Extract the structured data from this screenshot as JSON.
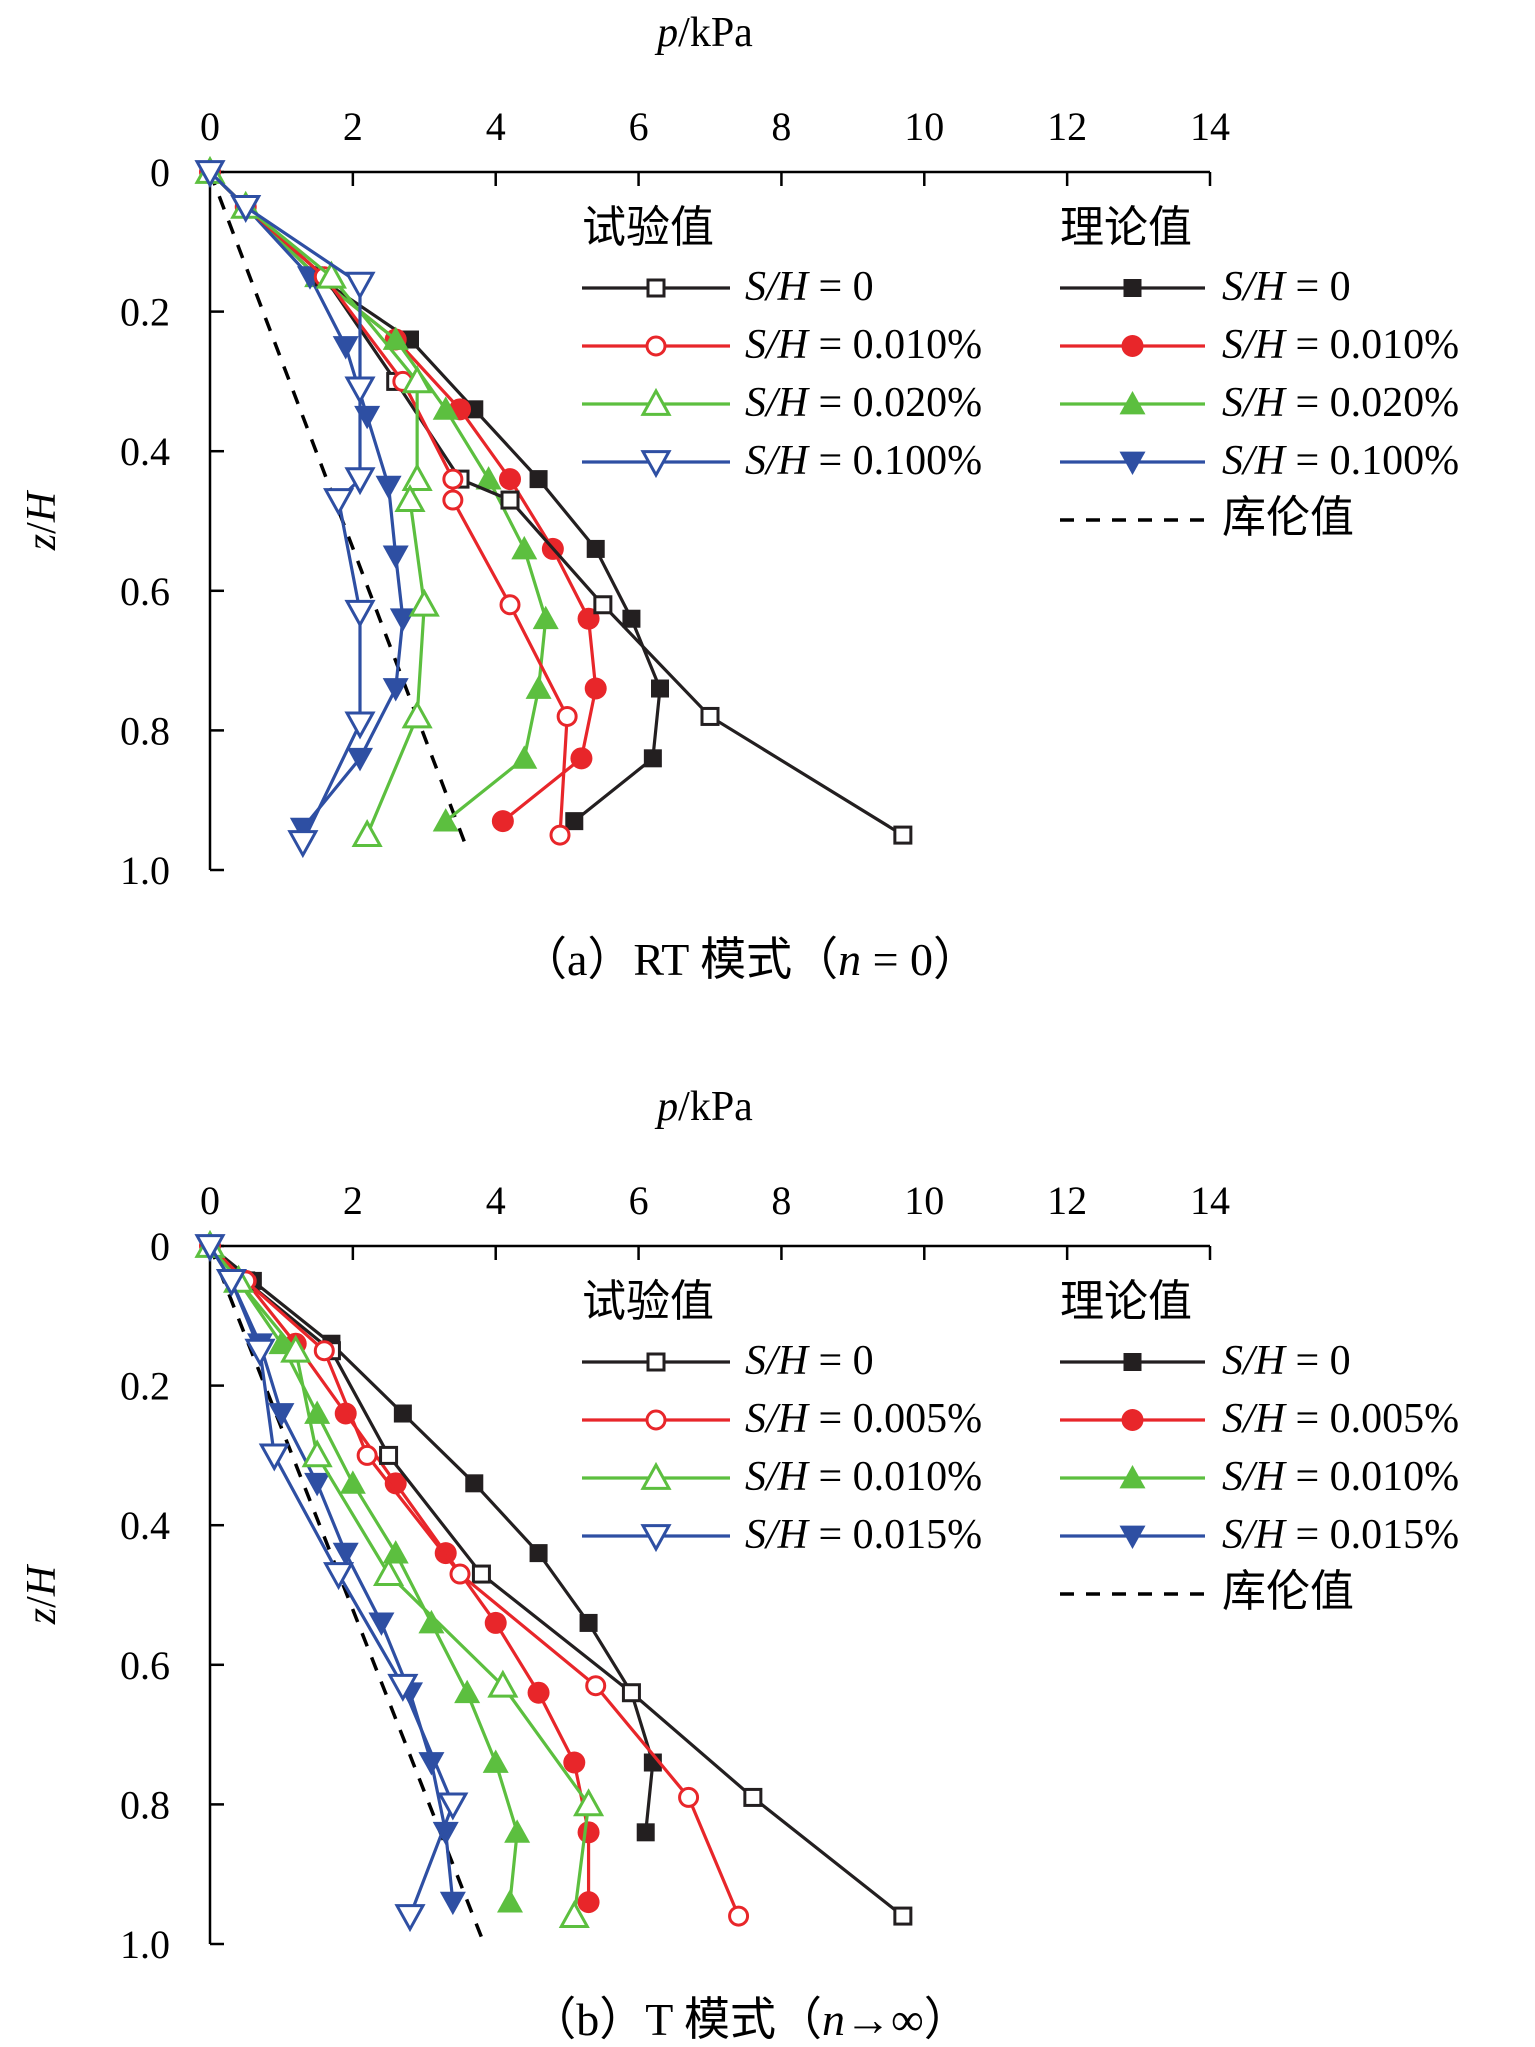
{
  "chart_data": [
    {
      "type": "line",
      "caption_lead": "（a）RT 模式（",
      "caption_var": "n",
      "caption_tail": " = 0）",
      "xlabel_var": "p",
      "xlabel_unit": "/kPa",
      "ylabel_var1": "z",
      "ylabel_sep": "/",
      "ylabel_var2": "H",
      "xlim": [
        0,
        14
      ],
      "ylim": [
        0,
        1.0
      ],
      "x_ticks": [
        "0",
        "2",
        "4",
        "6",
        "8",
        "10",
        "12",
        "14"
      ],
      "y_ticks": [
        "0",
        "0.2",
        "0.4",
        "0.6",
        "0.8",
        "1.0"
      ],
      "y_tick_values": [
        0,
        0.2,
        0.4,
        0.6,
        0.8,
        1.0
      ],
      "legend": {
        "test_header": "试验值",
        "theory_header": "理论值",
        "coulomb_label": "库伦值",
        "var_prefix": "S/H",
        "rows": [
          " = 0",
          " = 0.010%",
          " = 0.020%",
          " = 0.100%"
        ]
      },
      "colors": [
        "#231f20",
        "#e8262a",
        "#5cbf3f",
        "#2e4fa3"
      ],
      "test_series": [
        {
          "name": "S/H = 0",
          "x": [
            0,
            0.5,
            1.6,
            2.6,
            3.5,
            4.2,
            5.5,
            7.0,
            9.7
          ],
          "y": [
            0,
            0.05,
            0.15,
            0.3,
            0.44,
            0.47,
            0.62,
            0.78,
            0.95
          ]
        },
        {
          "name": "S/H = 0.010%",
          "x": [
            0,
            0.5,
            1.6,
            2.7,
            3.4,
            3.4,
            4.2,
            5.0,
            4.9
          ],
          "y": [
            0,
            0.05,
            0.15,
            0.3,
            0.44,
            0.47,
            0.62,
            0.78,
            0.95
          ]
        },
        {
          "name": "S/H = 0.020%",
          "x": [
            0,
            0.5,
            1.7,
            2.9,
            2.9,
            2.8,
            3.0,
            2.9,
            2.2
          ],
          "y": [
            0,
            0.05,
            0.15,
            0.3,
            0.44,
            0.47,
            0.62,
            0.78,
            0.95
          ]
        },
        {
          "name": "S/H = 0.100%",
          "x": [
            0,
            0.5,
            2.1,
            2.1,
            2.1,
            1.8,
            2.1,
            2.1,
            1.3
          ],
          "y": [
            0,
            0.05,
            0.16,
            0.31,
            0.44,
            0.47,
            0.63,
            0.79,
            0.96
          ]
        }
      ],
      "theory_series": [
        {
          "name": "S/H = 0",
          "x": [
            0,
            0.5,
            1.5,
            2.8,
            3.7,
            4.6,
            5.4,
            5.9,
            6.3,
            6.2,
            5.1
          ],
          "y": [
            0,
            0.05,
            0.15,
            0.24,
            0.34,
            0.44,
            0.54,
            0.64,
            0.74,
            0.84,
            0.93
          ]
        },
        {
          "name": "S/H = 0.010%",
          "x": [
            0,
            0.5,
            1.5,
            2.6,
            3.5,
            4.2,
            4.8,
            5.3,
            5.4,
            5.2,
            4.1
          ],
          "y": [
            0,
            0.05,
            0.15,
            0.24,
            0.34,
            0.44,
            0.54,
            0.64,
            0.74,
            0.84,
            0.93
          ]
        },
        {
          "name": "S/H = 0.020%",
          "x": [
            0,
            0.5,
            1.5,
            2.6,
            3.3,
            3.9,
            4.4,
            4.7,
            4.6,
            4.4,
            3.3
          ],
          "y": [
            0,
            0.05,
            0.15,
            0.24,
            0.34,
            0.44,
            0.54,
            0.64,
            0.74,
            0.84,
            0.93
          ]
        },
        {
          "name": "S/H = 0.100%",
          "x": [
            0,
            0.5,
            1.4,
            1.9,
            2.2,
            2.5,
            2.6,
            2.7,
            2.6,
            2.1,
            1.3
          ],
          "y": [
            0,
            0.05,
            0.15,
            0.25,
            0.35,
            0.45,
            0.55,
            0.64,
            0.74,
            0.84,
            0.94
          ]
        }
      ],
      "coulomb": {
        "x": [
          0,
          3.6
        ],
        "y": [
          0,
          0.97
        ]
      }
    },
    {
      "type": "line",
      "caption_lead": "（b）T 模式（",
      "caption_var": "n",
      "caption_tail": "→∞）",
      "xlabel_var": "p",
      "xlabel_unit": "/kPa",
      "ylabel_var1": "z",
      "ylabel_sep": "/",
      "ylabel_var2": "H",
      "xlim": [
        0,
        14
      ],
      "ylim": [
        0,
        1.0
      ],
      "x_ticks": [
        "0",
        "2",
        "4",
        "6",
        "8",
        "10",
        "12",
        "14"
      ],
      "y_ticks": [
        "0",
        "0.2",
        "0.4",
        "0.6",
        "0.8",
        "1.0"
      ],
      "y_tick_values": [
        0,
        0.2,
        0.4,
        0.6,
        0.8,
        1.0
      ],
      "legend": {
        "test_header": "试验值",
        "theory_header": "理论值",
        "coulomb_label": "库伦值",
        "var_prefix": "S/H",
        "rows": [
          " = 0",
          " = 0.005%",
          " = 0.010%",
          " = 0.015%"
        ]
      },
      "colors": [
        "#231f20",
        "#e8262a",
        "#5cbf3f",
        "#2e4fa3"
      ],
      "test_series": [
        {
          "name": "S/H = 0",
          "x": [
            0,
            0.5,
            1.7,
            2.5,
            3.8,
            5.9,
            7.6,
            9.7
          ],
          "y": [
            0,
            0.05,
            0.15,
            0.3,
            0.47,
            0.64,
            0.79,
            0.96
          ]
        },
        {
          "name": "S/H = 0.005%",
          "x": [
            0,
            0.5,
            1.6,
            2.2,
            3.5,
            5.4,
            6.7,
            7.4
          ],
          "y": [
            0,
            0.05,
            0.15,
            0.3,
            0.47,
            0.63,
            0.79,
            0.96
          ]
        },
        {
          "name": "S/H = 0.010%",
          "x": [
            0,
            0.4,
            1.2,
            1.5,
            2.5,
            4.1,
            5.3,
            5.1
          ],
          "y": [
            0,
            0.05,
            0.15,
            0.3,
            0.47,
            0.63,
            0.8,
            0.96
          ]
        },
        {
          "name": "S/H = 0.015%",
          "x": [
            0,
            0.3,
            0.7,
            0.9,
            1.8,
            2.7,
            3.4,
            2.8
          ],
          "y": [
            0,
            0.05,
            0.15,
            0.3,
            0.47,
            0.63,
            0.8,
            0.96
          ]
        }
      ],
      "theory_series": [
        {
          "name": "S/H = 0",
          "x": [
            0,
            0.6,
            1.7,
            2.7,
            3.7,
            4.6,
            5.3,
            5.9,
            6.2,
            6.1
          ],
          "y": [
            0,
            0.05,
            0.14,
            0.24,
            0.34,
            0.44,
            0.54,
            0.64,
            0.74,
            0.84
          ]
        },
        {
          "name": "S/H = 0.005%",
          "x": [
            0,
            0.5,
            1.2,
            1.9,
            2.6,
            3.3,
            4.0,
            4.6,
            5.1,
            5.3,
            5.3
          ],
          "y": [
            0,
            0.05,
            0.14,
            0.24,
            0.34,
            0.44,
            0.54,
            0.64,
            0.74,
            0.84,
            0.94
          ]
        },
        {
          "name": "S/H = 0.010%",
          "x": [
            0,
            0.4,
            1.0,
            1.5,
            2.0,
            2.6,
            3.1,
            3.6,
            4.0,
            4.3,
            4.2
          ],
          "y": [
            0,
            0.05,
            0.14,
            0.24,
            0.34,
            0.44,
            0.54,
            0.64,
            0.74,
            0.84,
            0.94
          ]
        },
        {
          "name": "S/H = 0.015%",
          "x": [
            0,
            0.3,
            0.7,
            1.0,
            1.5,
            1.9,
            2.4,
            2.8,
            3.1,
            3.3,
            3.4
          ],
          "y": [
            0,
            0.05,
            0.14,
            0.24,
            0.34,
            0.44,
            0.54,
            0.64,
            0.74,
            0.84,
            0.94
          ]
        }
      ],
      "coulomb": {
        "x": [
          0,
          3.8
        ],
        "y": [
          0,
          0.99
        ]
      }
    }
  ]
}
